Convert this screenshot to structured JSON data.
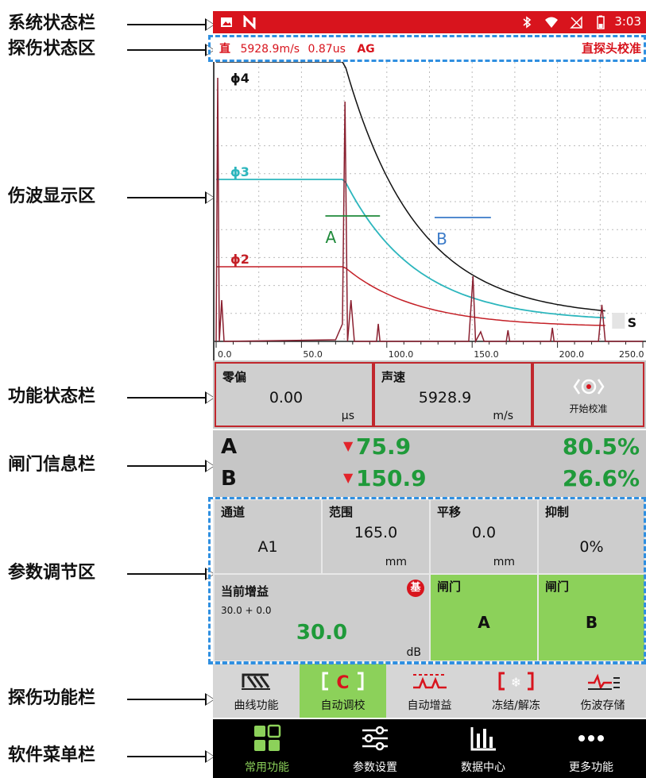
{
  "annotations": [
    {
      "label": "系统状态栏"
    },
    {
      "label": "探伤状态区"
    },
    {
      "label": "伤波显示区"
    },
    {
      "label": "功能状态栏"
    },
    {
      "label": "闸门信息栏"
    },
    {
      "label": "参数调节区"
    },
    {
      "label": "探伤功能栏"
    },
    {
      "label": "软件菜单栏"
    }
  ],
  "system_status": {
    "time": "3:03",
    "battery": "▮",
    "left_icons": [
      "image-icon",
      "n-icon"
    ],
    "right_icons": [
      "bluetooth-icon",
      "wifi-icon",
      "no-sim-icon",
      "battery-icon"
    ]
  },
  "detect_status": {
    "mode": "直",
    "velocity": "5928.9m/s",
    "delay": "0.87us",
    "gain_mode": "AG",
    "probe_label": "直探头校准"
  },
  "wave": {
    "curve_labels": [
      "ϕ4",
      "ϕ3",
      "ϕ2"
    ],
    "gate_a_label": "A",
    "gate_b_label": "B",
    "scan_marker": "S",
    "x_ticks": [
      "0.0",
      "50.0",
      "100.0",
      "150.0",
      "200.0",
      "250.0"
    ],
    "xlim": [
      0,
      250
    ],
    "colors": {
      "phi4": "#111111",
      "phi3": "#2cb6bd",
      "phi2": "#c41f26",
      "echo": "#8a2030",
      "gate_a": "#1f8a3a",
      "gate_b": "#3a7ac8"
    }
  },
  "func_status": {
    "zero_label": "零偏",
    "zero_value": "0.00",
    "zero_unit": "μs",
    "velocity_label": "声速",
    "velocity_value": "5928.9",
    "velocity_unit": "m/s",
    "calibrate_label": "开始校准"
  },
  "gate_info": {
    "a_name": "A",
    "a_value": "75.9",
    "a_pct": "80.5%",
    "b_name": "B",
    "b_value": "150.9",
    "b_pct": "26.6%"
  },
  "params": {
    "channel_label": "通道",
    "channel_value": "A1",
    "range_label": "范围",
    "range_value": "165.0",
    "range_unit": "mm",
    "shift_label": "平移",
    "shift_value": "0.0",
    "shift_unit": "mm",
    "reject_label": "抑制",
    "reject_value": "0%",
    "gain_label": "当前增益",
    "gain_sub": "30.0 + 0.0",
    "gain_value": "30.0",
    "gain_unit": "dB",
    "gain_badge": "基",
    "gate_a_label": "闸门",
    "gate_a_value": "A",
    "gate_b_label": "闸门",
    "gate_b_value": "B"
  },
  "funcbar": [
    {
      "label": "曲线功能",
      "icon": "curve-icon"
    },
    {
      "label": "自动调校",
      "icon": "auto-calibrate-icon"
    },
    {
      "label": "自动增益",
      "icon": "auto-gain-icon"
    },
    {
      "label": "冻结/解冻",
      "icon": "freeze-icon"
    },
    {
      "label": "伤波存储",
      "icon": "wave-save-icon"
    }
  ],
  "menubar": [
    {
      "label": "常用功能",
      "icon": "grid-icon"
    },
    {
      "label": "参数设置",
      "icon": "sliders-icon"
    },
    {
      "label": "数据中心",
      "icon": "bar-chart-icon"
    },
    {
      "label": "更多功能",
      "icon": "more-icon"
    }
  ]
}
